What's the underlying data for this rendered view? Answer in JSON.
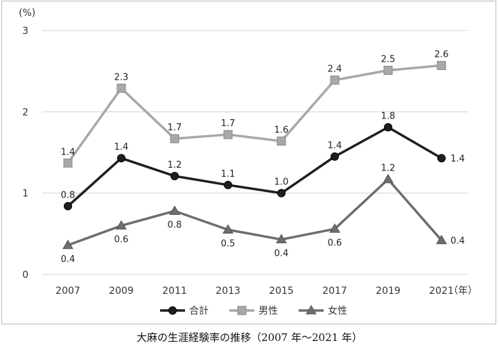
{
  "caption": "大麻の生涯経験率の推移（2007 年〜2021 年）",
  "chart_data": {
    "type": "line",
    "x_unit": "（年）",
    "y_unit": "(%)",
    "categories": [
      "2007",
      "2009",
      "2011",
      "2013",
      "2015",
      "2017",
      "2019",
      "2021"
    ],
    "y_ticks": [
      "0",
      "1",
      "2",
      "3"
    ],
    "ylim": [
      0,
      3
    ],
    "grid": true,
    "legend_position": "bottom",
    "series": [
      {
        "name": "合計",
        "marker": "circle",
        "color": "#1f1f1f",
        "values": [
          0.84,
          1.43,
          1.21,
          1.1,
          1.0,
          1.45,
          1.81,
          1.43
        ],
        "labels": [
          "0.8",
          "1.4",
          "1.2",
          "1.1",
          "1.0",
          "1.4",
          "1.8",
          "1.4"
        ],
        "label_pos": [
          "above",
          "above",
          "above",
          "above",
          "above",
          "above",
          "above",
          "right"
        ]
      },
      {
        "name": "男性",
        "marker": "square",
        "color": "#a8a8a8",
        "values": [
          1.37,
          2.29,
          1.67,
          1.72,
          1.64,
          2.39,
          2.51,
          2.57
        ],
        "labels": [
          "1.4",
          "2.3",
          "1.7",
          "1.7",
          "1.6",
          "2.4",
          "2.5",
          "2.6"
        ],
        "label_pos": [
          "above",
          "above",
          "above",
          "above",
          "above",
          "above",
          "above",
          "above"
        ]
      },
      {
        "name": "女性",
        "marker": "triangle",
        "color": "#6e6e6e",
        "values": [
          0.36,
          0.6,
          0.78,
          0.55,
          0.43,
          0.56,
          1.17,
          0.42
        ],
        "labels": [
          "0.4",
          "0.6",
          "0.8",
          "0.5",
          "0.4",
          "0.6",
          "1.2",
          "0.4"
        ],
        "label_pos": [
          "below",
          "below",
          "below",
          "below",
          "below",
          "below",
          "above",
          "right"
        ]
      }
    ]
  }
}
